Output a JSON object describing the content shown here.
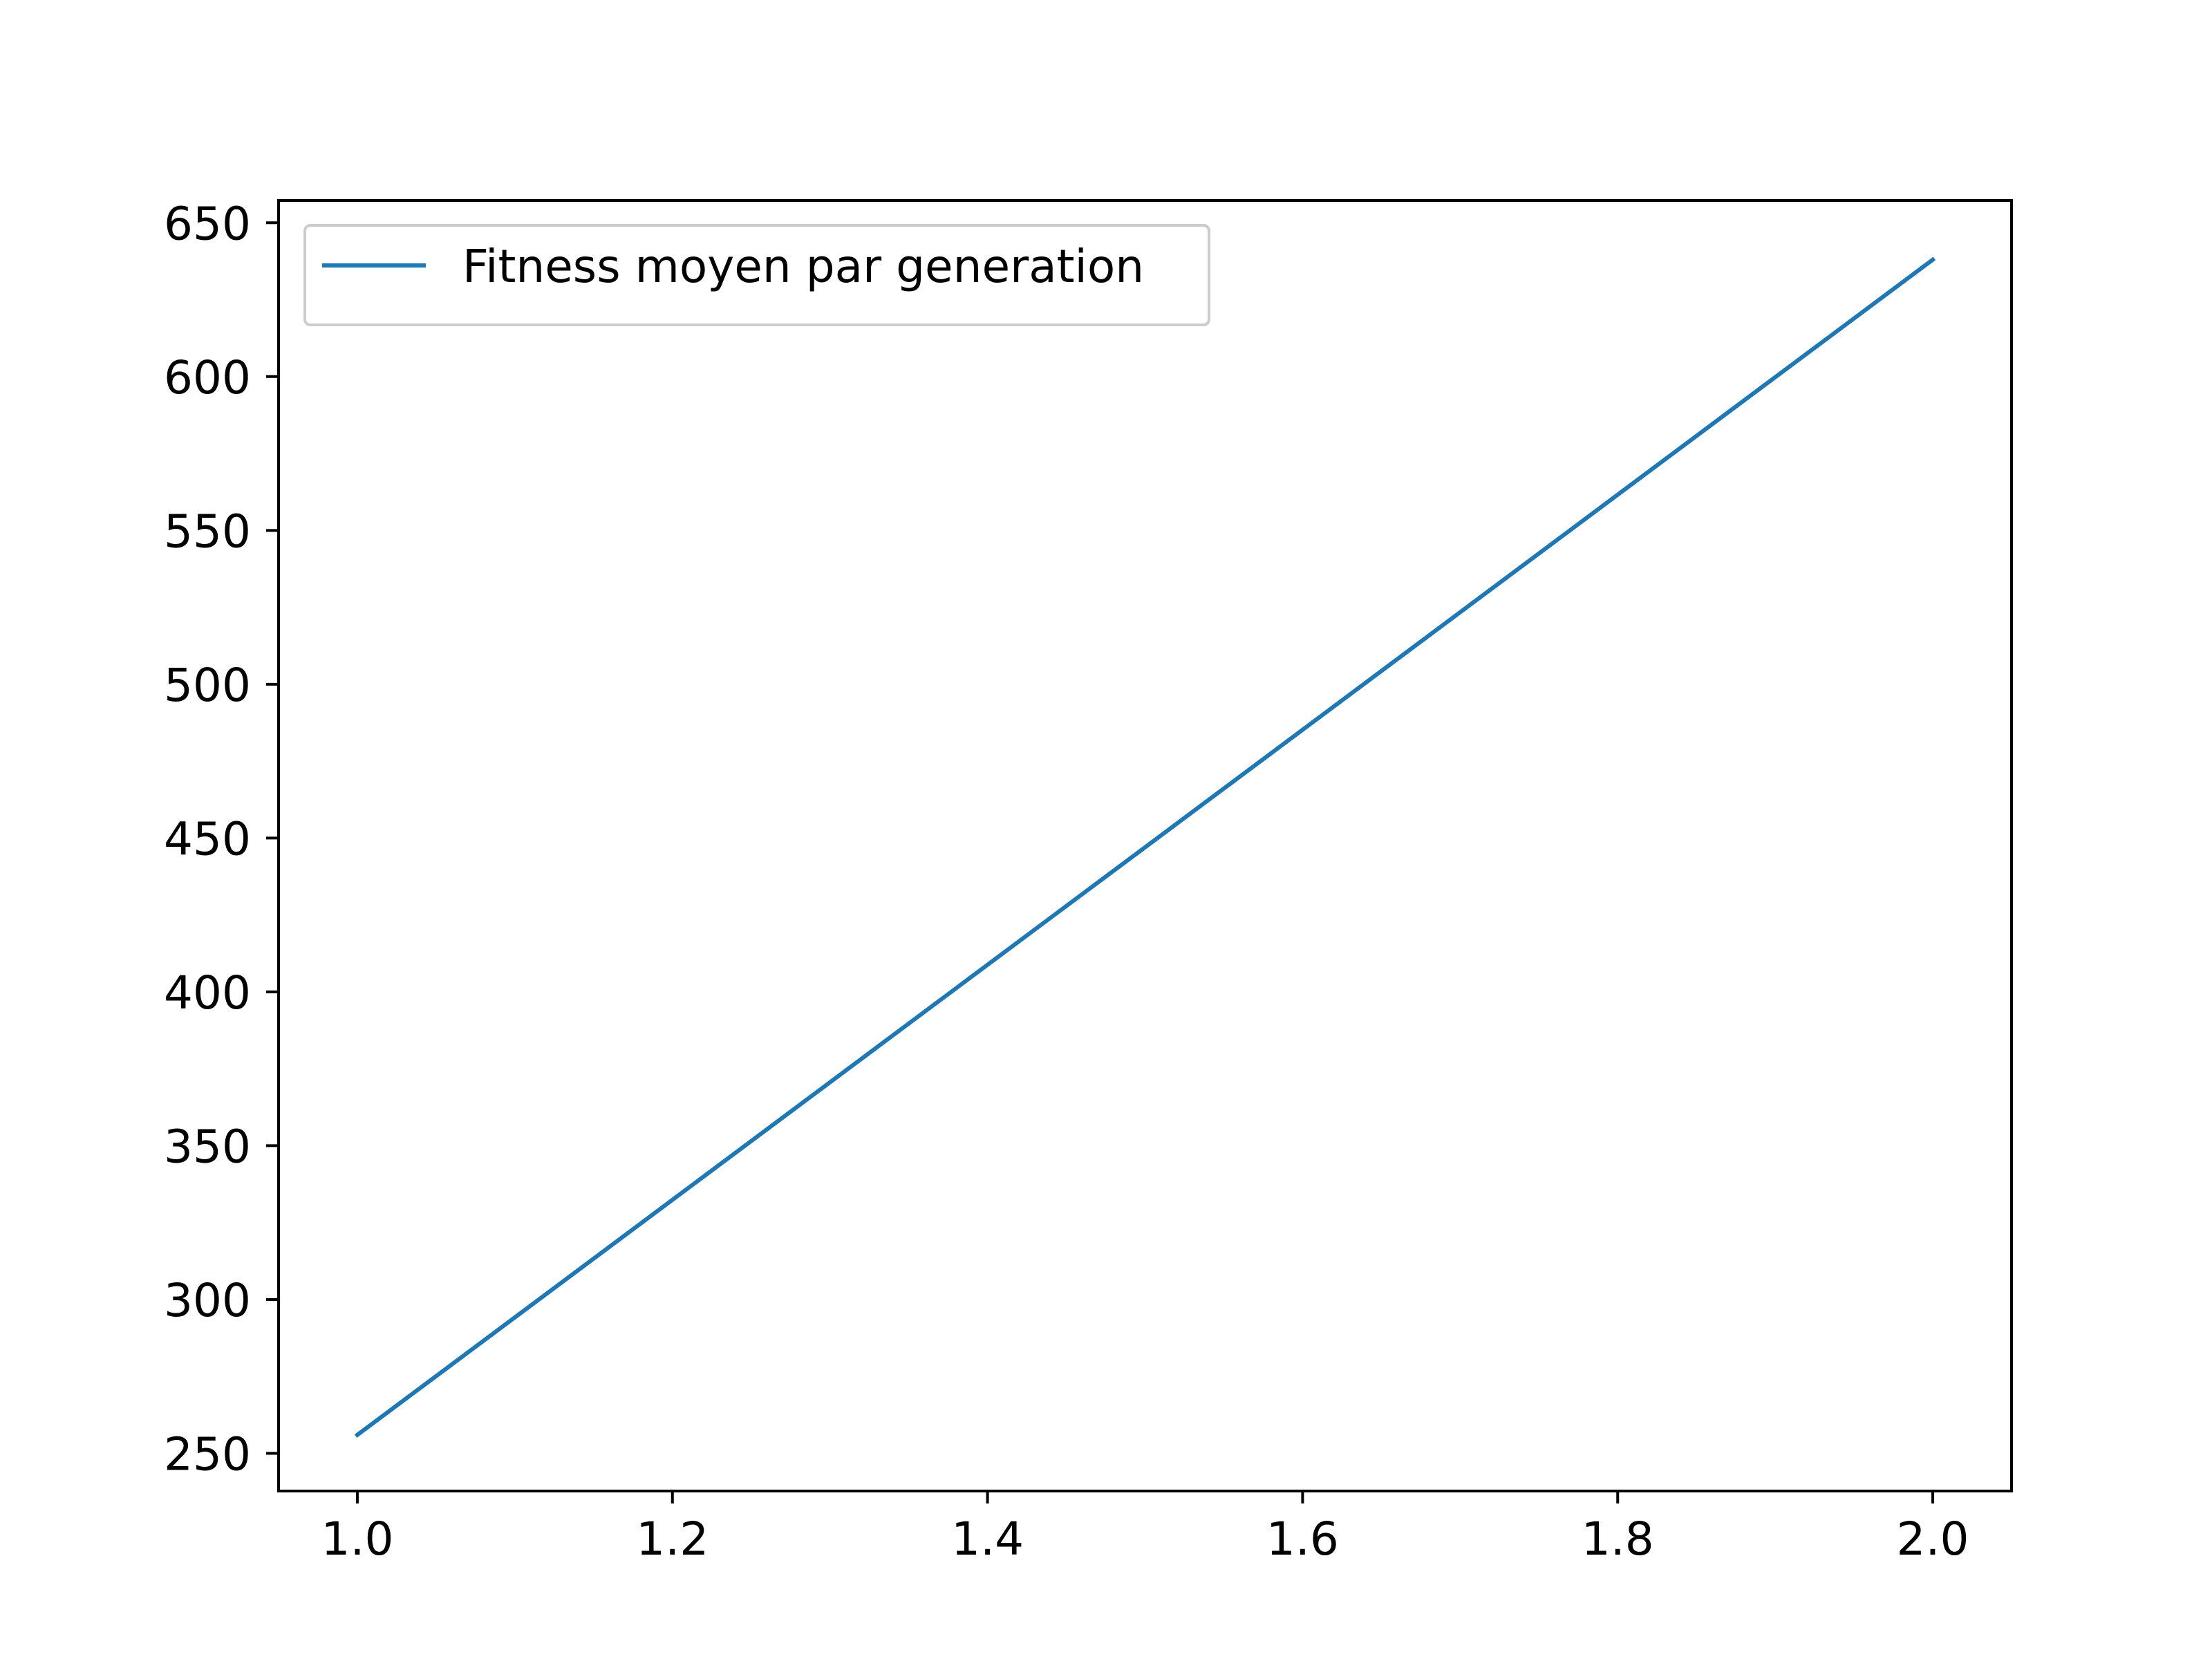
{
  "chart_data": {
    "type": "line",
    "title": "",
    "xlabel": "",
    "ylabel": "",
    "xlim": [
      0.95,
      2.05
    ],
    "ylim": [
      237.75,
      657.25
    ],
    "x_ticks": [
      1.0,
      1.2,
      1.4,
      1.6,
      1.8,
      2.0
    ],
    "x_tick_labels": [
      "1.0",
      "1.2",
      "1.4",
      "1.6",
      "1.8",
      "2.0"
    ],
    "y_ticks": [
      250,
      300,
      350,
      400,
      450,
      500,
      550,
      600,
      650
    ],
    "y_tick_labels": [
      "250",
      "300",
      "350",
      "400",
      "450",
      "500",
      "550",
      "600",
      "650"
    ],
    "grid": false,
    "legend": {
      "placement": "top-left",
      "entries": [
        "Fitness moyen par generation"
      ]
    },
    "series": [
      {
        "name": "Fitness moyen par generation",
        "color": "#1f77b4",
        "x": [
          1,
          2
        ],
        "values": [
          256,
          638
        ]
      }
    ]
  }
}
